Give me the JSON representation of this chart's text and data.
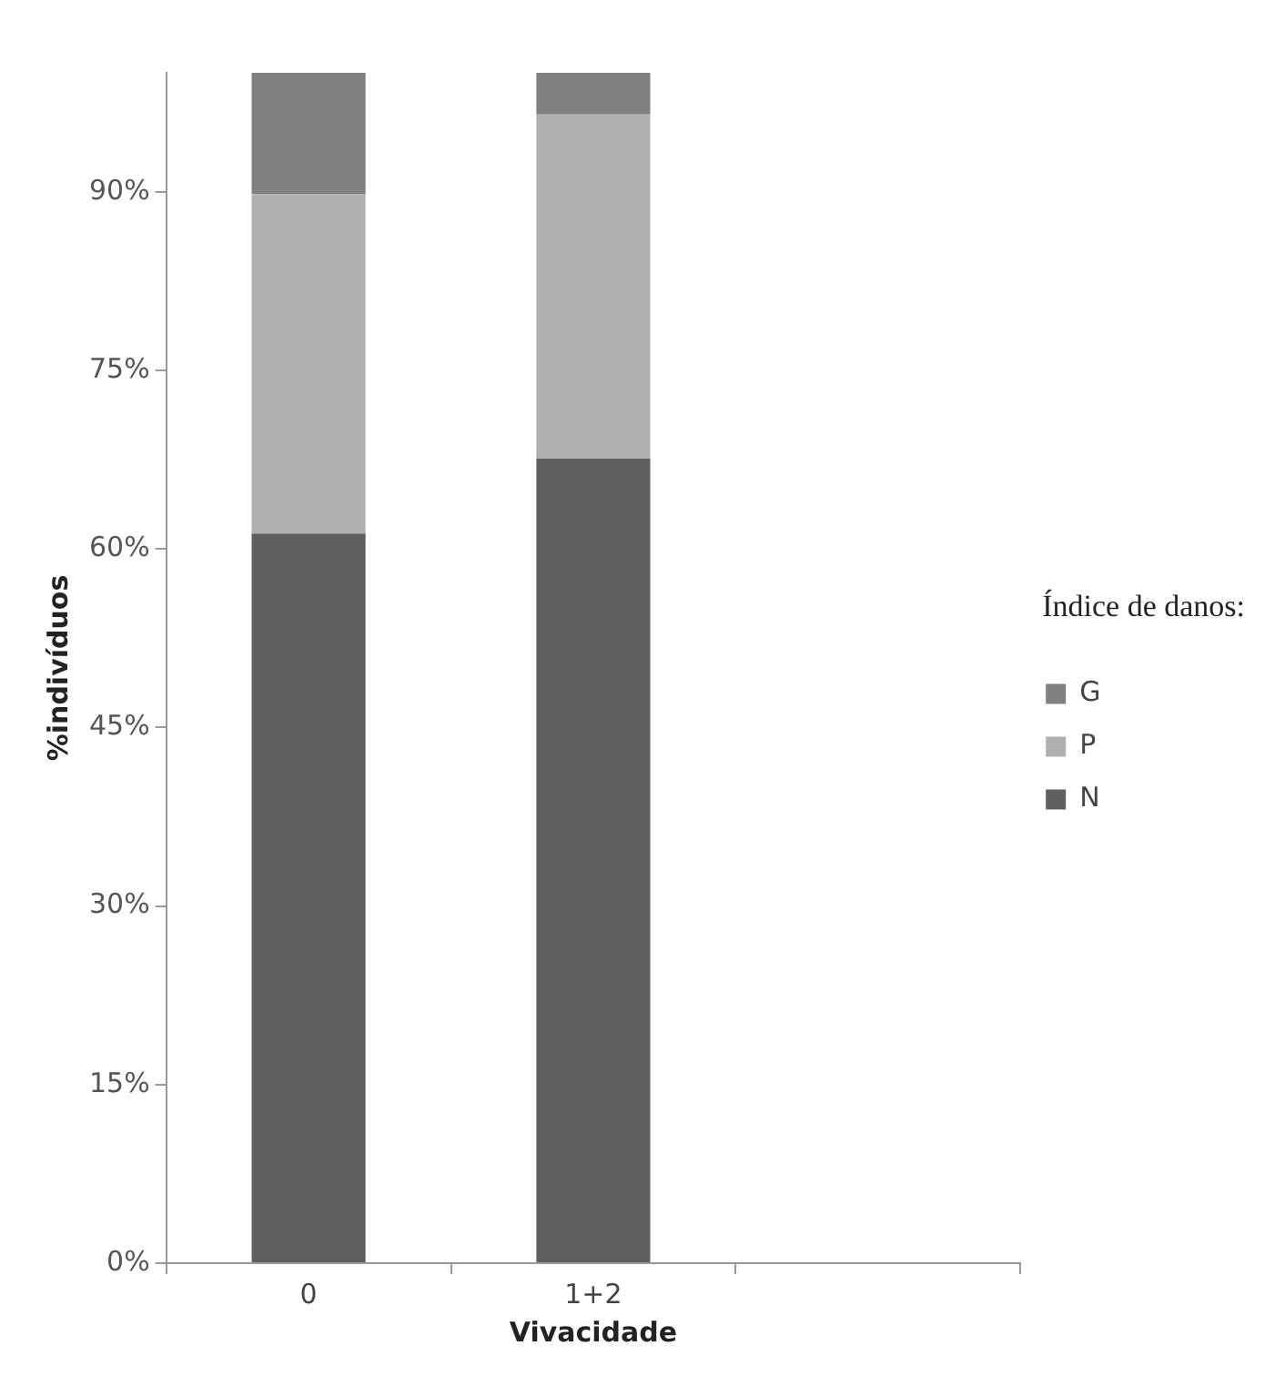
{
  "chart_data": {
    "type": "bar",
    "stacked": true,
    "xlabel": "Vivacidade",
    "ylabel": "%indivíduos",
    "legend_title": "Índice de danos:",
    "legend": "right",
    "categories": [
      "0",
      "1+2",
      null
    ],
    "series": [
      {
        "name": "N",
        "color": "#5f5f5f",
        "values": [
          61.3,
          67.6,
          null
        ]
      },
      {
        "name": "P",
        "color": "#b0b0b0",
        "values": [
          28.5,
          28.9,
          null
        ]
      },
      {
        "name": "G",
        "color": "#808080",
        "values": [
          10.2,
          3.5,
          null
        ]
      }
    ],
    "ylim": [
      0,
      100
    ],
    "yticks": [
      {
        "value": 0,
        "label": "0%"
      },
      {
        "value": 15,
        "label": "15%"
      },
      {
        "value": 30,
        "label": "30%"
      },
      {
        "value": 45,
        "label": "45%"
      },
      {
        "value": 60,
        "label": "60%"
      },
      {
        "value": 75,
        "label": "75%"
      },
      {
        "value": 90,
        "label": "90%"
      }
    ],
    "grid": false
  }
}
